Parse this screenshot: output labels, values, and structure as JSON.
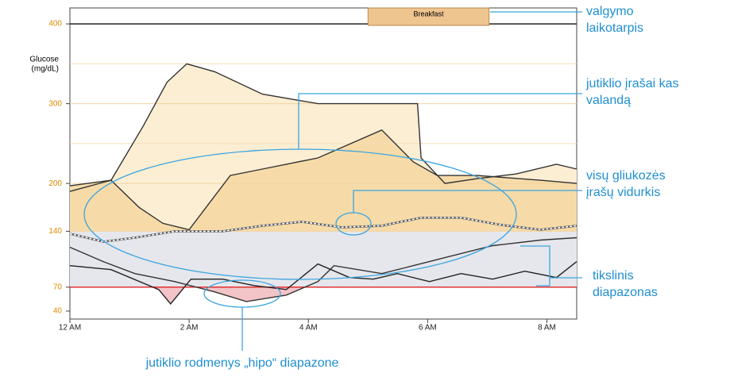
{
  "chart_data": {
    "type": "line",
    "y_label": [
      "Glucose",
      "(mg/dL)"
    ],
    "xlim": [
      0,
      8.5
    ],
    "ylim": [
      30,
      420
    ],
    "xticks": [
      {
        "value": 0,
        "label": "12 AM"
      },
      {
        "value": 2,
        "label": "2 AM"
      },
      {
        "value": 4,
        "label": "4 AM"
      },
      {
        "value": 6,
        "label": "6 AM"
      },
      {
        "value": 8,
        "label": "8 AM"
      }
    ],
    "yticks": [
      40,
      70,
      140,
      200,
      300,
      400
    ],
    "minor_gridlines": [
      250,
      350
    ],
    "grid": true,
    "target_range": [
      70,
      140
    ],
    "meal": {
      "label": "Breakfast",
      "start": 5,
      "end": 7.03
    },
    "series": [
      {
        "color": "#333333",
        "x": [
          0,
          0.69,
          1.23,
          1.63,
          1.96,
          2.43,
          3.23,
          4.16,
          4.96,
          5.83,
          5.89,
          6.29,
          6.83,
          7.49,
          8.16,
          8.5
        ],
        "values": [
          190,
          204,
          272,
          327,
          350,
          340,
          312,
          300,
          300,
          300,
          232,
          200,
          206,
          212,
          224,
          218
        ]
      },
      {
        "color": "#333333",
        "x": [
          0,
          0.69,
          1.16,
          1.56,
          2,
          2.69,
          3.23,
          4.16,
          5.23,
          5.76,
          6.16,
          6.83,
          7.89,
          8.5
        ],
        "values": [
          197,
          204,
          170,
          150,
          142,
          210,
          218,
          232,
          267,
          227,
          210,
          210,
          204,
          200
        ]
      },
      {
        "color": "#ffffff",
        "dashed": true,
        "x": [
          0,
          0.56,
          1.09,
          1.76,
          2.56,
          3.23,
          3.89,
          4.56,
          5.23,
          5.89,
          6.56,
          7.23,
          7.89,
          8.5
        ],
        "values": [
          137,
          127,
          132,
          140,
          140,
          147,
          152,
          145,
          147,
          157,
          157,
          148,
          142,
          147
        ]
      },
      {
        "color": "#333333",
        "x": [
          0,
          0.56,
          1.09,
          1.76,
          2.43,
          2.96,
          3.63,
          4.16,
          4.43,
          5.23,
          5.76,
          6.29,
          7.09,
          7.89,
          8.5
        ],
        "values": [
          120,
          102,
          87,
          77,
          64,
          52,
          60,
          77,
          97,
          87,
          97,
          107,
          122,
          129,
          132
        ]
      },
      {
        "color": "#222222",
        "x": [
          0,
          0.69,
          1.49,
          1.69,
          2.03,
          2.56,
          3.09,
          3.63,
          4.16,
          4.69,
          5.09,
          5.49,
          6.03,
          6.56,
          7.09,
          7.63,
          8.16,
          8.5
        ],
        "values": [
          97,
          92,
          67,
          49,
          80,
          80,
          72,
          67,
          99,
          82,
          80,
          87,
          77,
          87,
          80,
          90,
          82,
          102
        ]
      }
    ],
    "annotations": {
      "meal": [
        "valgymo",
        "laikotarpis"
      ],
      "hourly": [
        "jutiklio įrašai kas",
        "valandą"
      ],
      "average": [
        "visų gliukozės",
        "įrašų vidurkis"
      ],
      "target": [
        "tikslinis",
        "diapazonas"
      ],
      "hypo": "jutiklio rodmenys „hipo“ diapazone"
    }
  }
}
